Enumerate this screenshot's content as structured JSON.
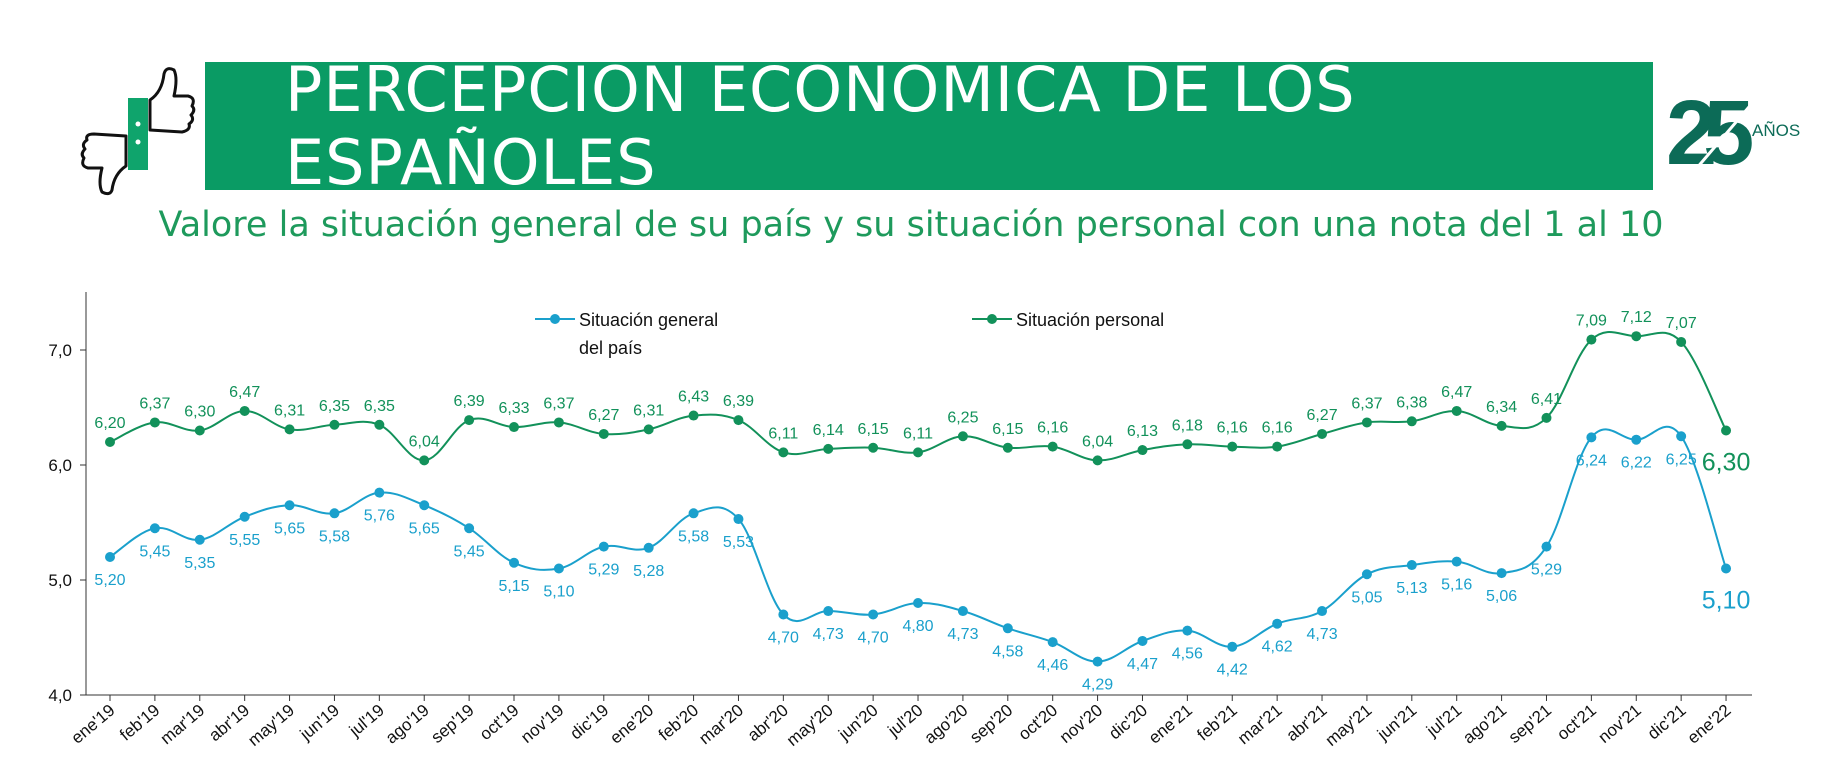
{
  "header": {
    "title": "PERCEPCIÓN ECONÓMICA DE LOS ESPAÑOLES",
    "subtitle": "Valore la situación general de su país y su situación personal con una nota del 1 al 10",
    "badge_number": "25",
    "badge_text": "AÑOS"
  },
  "icons": [
    "thumbs-up-icon",
    "thumbs-down-icon"
  ],
  "colors": {
    "brand_green": "#0a9b64",
    "personal_series": "#12915a",
    "general_series": "#1aa0cc",
    "badge_dark": "#0c6b57",
    "badge_light": "#0fa46c"
  },
  "chart_data": {
    "type": "line",
    "categories": [
      "ene'19",
      "feb'19",
      "mar'19",
      "abr'19",
      "may'19",
      "jun'19",
      "jul'19",
      "ago'19",
      "sep'19",
      "oct'19",
      "nov'19",
      "dic'19",
      "ene'20",
      "feb'20",
      "mar'20",
      "abr'20",
      "may'20",
      "jun'20",
      "jul'20",
      "ago'20",
      "sep'20",
      "oct'20",
      "nov'20",
      "dic'20",
      "ene'21",
      "feb'21",
      "mar'21",
      "abr'21",
      "may'21",
      "jun'21",
      "jul'21",
      "ago'21",
      "sep'21",
      "oct'21",
      "nov'21",
      "dic'21",
      "ene'22"
    ],
    "series": [
      {
        "name": "Situación general del país",
        "color": "#1aa0cc",
        "values": [
          5.2,
          5.45,
          5.35,
          5.55,
          5.65,
          5.58,
          5.76,
          5.65,
          5.45,
          5.15,
          5.1,
          5.29,
          5.28,
          5.58,
          5.53,
          4.7,
          4.73,
          4.7,
          4.8,
          4.73,
          4.58,
          4.46,
          4.29,
          4.47,
          4.56,
          4.42,
          4.62,
          4.73,
          5.05,
          5.13,
          5.16,
          5.06,
          5.29,
          6.24,
          6.22,
          6.25,
          5.1
        ],
        "labels": [
          "5,20",
          "5,45",
          "5,35",
          "5,55",
          "5,65",
          "5,58",
          "5,76",
          "5,65",
          "5,45",
          "5,15",
          "5,10",
          "5,29",
          "5,28",
          "5,58",
          "5,53",
          "4,70",
          "4,73",
          "4,70",
          "4,80",
          "4,73",
          "4,58",
          "4,46",
          "4,29",
          "4,47",
          "4,56",
          "4,42",
          "4,62",
          "4,73",
          "5,05",
          "5,13",
          "5,16",
          "5,06",
          "5,29",
          "6,24",
          "6,22",
          "6,25",
          "5,10"
        ]
      },
      {
        "name": "Situación personal",
        "color": "#12915a",
        "values": [
          6.2,
          6.37,
          6.3,
          6.47,
          6.31,
          6.35,
          6.35,
          6.04,
          6.39,
          6.33,
          6.37,
          6.27,
          6.31,
          6.43,
          6.39,
          6.11,
          6.14,
          6.15,
          6.11,
          6.25,
          6.15,
          6.16,
          6.04,
          6.13,
          6.18,
          6.16,
          6.16,
          6.27,
          6.37,
          6.38,
          6.47,
          6.34,
          6.41,
          7.09,
          7.12,
          7.07,
          6.3
        ],
        "labels": [
          "6,20",
          "6,37",
          "6,30",
          "6,47",
          "6,31",
          "6,35",
          "6,35",
          "6,04",
          "6,39",
          "6,33",
          "6,37",
          "6,27",
          "6,31",
          "6,43",
          "6,39",
          "6,11",
          "6,14",
          "6,15",
          "6,11",
          "6,25",
          "6,15",
          "6,16",
          "6,04",
          "6,13",
          "6,18",
          "6,16",
          "6,16",
          "6,27",
          "6,37",
          "6,38",
          "6,47",
          "6,34",
          "6,41",
          "7,09",
          "7,12",
          "7,07",
          "6,30"
        ]
      }
    ],
    "legend": {
      "general_lines": [
        "Situación general",
        "del país"
      ],
      "personal": "Situación personal",
      "placement": "top"
    },
    "y_ticks": [
      "4,0",
      "5,0",
      "6,0",
      "7,0"
    ],
    "y_tick_values": [
      4,
      5,
      6,
      7
    ],
    "ylim": [
      4.0,
      7.5
    ],
    "grid": false,
    "xlabel": "",
    "ylabel": ""
  }
}
